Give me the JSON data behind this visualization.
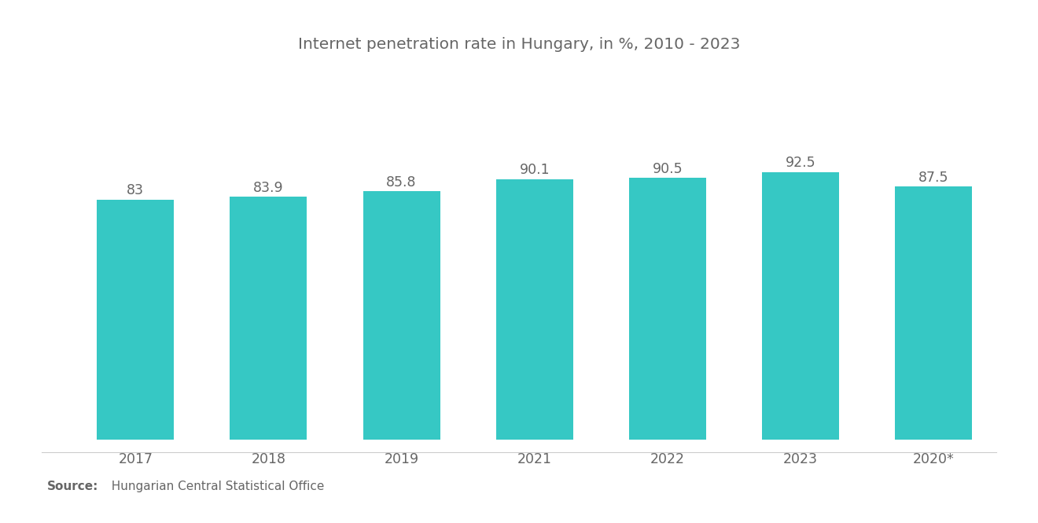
{
  "title": "Internet penetration rate in Hungary, in %, 2010 - 2023",
  "categories": [
    "2017",
    "2018",
    "2019",
    "2021",
    "2022",
    "2023",
    "2020*"
  ],
  "values": [
    83,
    83.9,
    85.8,
    90.1,
    90.5,
    92.5,
    87.5
  ],
  "bar_color": "#36C8C4",
  "background_color": "#ffffff",
  "title_fontsize": 14.5,
  "label_fontsize": 12.5,
  "tick_fontsize": 12.5,
  "source_bold": "Source:",
  "source_text": "  Hungarian Central Statistical Office",
  "ylim_min": 0,
  "ylim_max": 105,
  "text_color": "#666666",
  "bar_width": 0.58
}
